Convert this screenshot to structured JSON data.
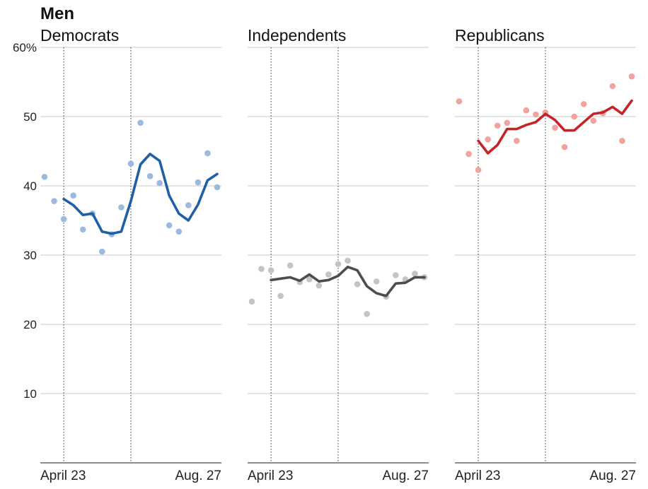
{
  "title": "Men",
  "chart_data": {
    "type": "line",
    "ylim": [
      0,
      60
    ],
    "yticks": [
      10,
      20,
      30,
      40,
      50,
      60
    ],
    "ytick_labels": [
      "10",
      "20",
      "30",
      "40",
      "50",
      "60%"
    ],
    "x_tick_labels": [
      "April 23",
      "Aug. 27"
    ],
    "x_range": [
      0,
      18
    ],
    "x_ticks": [
      2,
      18
    ],
    "event_markers_x": [
      2,
      9
    ],
    "grid": true,
    "panels": [
      {
        "title": "Democrats",
        "line_color": "#1f5fa6",
        "point_color": "#9cb9e0",
        "points": [
          [
            0,
            41.3
          ],
          [
            1,
            37.8
          ],
          [
            2,
            35.2
          ],
          [
            3,
            38.6
          ],
          [
            4,
            33.7
          ],
          [
            5,
            36.0
          ],
          [
            6,
            30.5
          ],
          [
            7,
            33.0
          ],
          [
            8,
            36.9
          ],
          [
            9,
            43.2
          ],
          [
            10,
            49.1
          ],
          [
            11,
            41.4
          ],
          [
            12,
            40.4
          ],
          [
            13,
            34.3
          ],
          [
            14,
            33.4
          ],
          [
            15,
            37.2
          ],
          [
            16,
            40.5
          ],
          [
            17,
            44.7
          ],
          [
            18,
            39.8
          ]
        ],
        "trend": [
          [
            2,
            38.1
          ],
          [
            3,
            37.2
          ],
          [
            4,
            35.8
          ],
          [
            5,
            36.0
          ],
          [
            6,
            33.4
          ],
          [
            7,
            33.1
          ],
          [
            8,
            33.4
          ],
          [
            9,
            37.8
          ],
          [
            10,
            43.1
          ],
          [
            11,
            44.6
          ],
          [
            12,
            43.6
          ],
          [
            13,
            38.6
          ],
          [
            14,
            36.0
          ],
          [
            15,
            35.0
          ],
          [
            16,
            37.3
          ],
          [
            17,
            40.8
          ],
          [
            18,
            41.7
          ]
        ]
      },
      {
        "title": "Independents",
        "line_color": "#4d4d4d",
        "point_color": "#c4c4c4",
        "points": [
          [
            0,
            23.3
          ],
          [
            1,
            28.0
          ],
          [
            2,
            27.8
          ],
          [
            3,
            24.1
          ],
          [
            4,
            28.5
          ],
          [
            5,
            26.1
          ],
          [
            6,
            26.5
          ],
          [
            7,
            25.6
          ],
          [
            8,
            27.2
          ],
          [
            9,
            28.7
          ],
          [
            10,
            29.2
          ],
          [
            11,
            25.8
          ],
          [
            12,
            21.5
          ],
          [
            13,
            26.2
          ],
          [
            14,
            24.0
          ],
          [
            15,
            27.1
          ],
          [
            16,
            26.5
          ],
          [
            17,
            27.3
          ],
          [
            18,
            26.8
          ]
        ],
        "trend": [
          [
            2,
            26.4
          ],
          [
            3,
            26.6
          ],
          [
            4,
            26.8
          ],
          [
            5,
            26.3
          ],
          [
            6,
            27.2
          ],
          [
            7,
            26.2
          ],
          [
            8,
            26.4
          ],
          [
            9,
            27.0
          ],
          [
            10,
            28.3
          ],
          [
            11,
            27.8
          ],
          [
            12,
            25.5
          ],
          [
            13,
            24.5
          ],
          [
            14,
            24.1
          ],
          [
            15,
            25.9
          ],
          [
            16,
            26.0
          ],
          [
            17,
            26.8
          ],
          [
            18,
            26.8
          ]
        ]
      },
      {
        "title": "Republicans",
        "line_color": "#c42327",
        "point_color": "#f0a39f",
        "points": [
          [
            0,
            52.2
          ],
          [
            1,
            44.6
          ],
          [
            2,
            42.3
          ],
          [
            3,
            46.7
          ],
          [
            4,
            48.7
          ],
          [
            5,
            49.1
          ],
          [
            6,
            46.5
          ],
          [
            7,
            50.9
          ],
          [
            8,
            50.3
          ],
          [
            9,
            50.6
          ],
          [
            10,
            48.4
          ],
          [
            11,
            45.6
          ],
          [
            12,
            50.0
          ],
          [
            13,
            51.8
          ],
          [
            14,
            49.4
          ],
          [
            15,
            50.5
          ],
          [
            16,
            54.4
          ],
          [
            17,
            46.5
          ],
          [
            18,
            55.8
          ]
        ],
        "trend": [
          [
            2,
            46.5
          ],
          [
            3,
            44.7
          ],
          [
            4,
            45.9
          ],
          [
            5,
            48.2
          ],
          [
            6,
            48.2
          ],
          [
            7,
            48.8
          ],
          [
            8,
            49.2
          ],
          [
            9,
            50.4
          ],
          [
            10,
            49.5
          ],
          [
            11,
            48.0
          ],
          [
            12,
            48.0
          ],
          [
            13,
            49.2
          ],
          [
            14,
            50.4
          ],
          [
            15,
            50.6
          ],
          [
            16,
            51.4
          ],
          [
            17,
            50.4
          ],
          [
            18,
            52.3
          ]
        ]
      }
    ]
  }
}
